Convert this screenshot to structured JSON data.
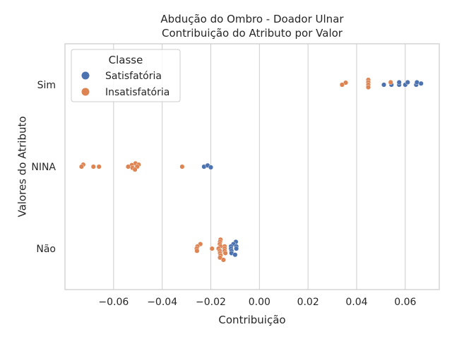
{
  "chart_data": {
    "type": "scatter",
    "title": "Abdução do Ombro - Doador Ulnar",
    "subtitle": "Contribuição do Atributo por Valor",
    "xlabel": "Contribuição",
    "ylabel": "Valores do Atributo",
    "xlim": [
      -0.08,
      0.074
    ],
    "xticks": [
      -0.06,
      -0.04,
      -0.02,
      0.0,
      0.02,
      0.04,
      0.06
    ],
    "xtick_labels": [
      "−0.06",
      "−0.04",
      "−0.02",
      "0.00",
      "0.02",
      "0.04",
      "0.06"
    ],
    "categories": [
      "Sim",
      "NINA",
      "Não"
    ],
    "grid": "vertical",
    "legend": {
      "title": "Classe",
      "placement": "upper-left"
    },
    "colors": {
      "Satisfatória": "#4c72b0",
      "Insatisfatória": "#dd8452",
      "grid": "#cccccc",
      "spine": "#cccccc"
    },
    "series": [
      {
        "name": "Satisfatória",
        "points": [
          {
            "category": "Sim",
            "x": 0.0512,
            "offset": 0.0
          },
          {
            "category": "Sim",
            "x": 0.0543,
            "offset": 0.0
          },
          {
            "category": "Sim",
            "x": 0.0575,
            "offset": 0.0
          },
          {
            "category": "Sim",
            "x": 0.0575,
            "offset": 0.12
          },
          {
            "category": "Sim",
            "x": 0.06,
            "offset": 0.0
          },
          {
            "category": "Sim",
            "x": 0.061,
            "offset": 0.12
          },
          {
            "category": "Sim",
            "x": 0.0645,
            "offset": 0.0
          },
          {
            "category": "Sim",
            "x": 0.0648,
            "offset": 0.12
          },
          {
            "category": "Sim",
            "x": 0.0665,
            "offset": 0.06
          },
          {
            "category": "NINA",
            "x": -0.0228,
            "offset": 0.0
          },
          {
            "category": "NINA",
            "x": -0.0213,
            "offset": 0.06
          },
          {
            "category": "NINA",
            "x": -0.02,
            "offset": -0.03
          },
          {
            "category": "Não",
            "x": -0.0097,
            "offset": 0.33
          },
          {
            "category": "Não",
            "x": -0.0107,
            "offset": 0.22
          },
          {
            "category": "Não",
            "x": -0.0117,
            "offset": 0.11
          },
          {
            "category": "Não",
            "x": -0.0095,
            "offset": 0.11
          },
          {
            "category": "Não",
            "x": -0.0117,
            "offset": 0.0
          },
          {
            "category": "Não",
            "x": -0.0095,
            "offset": 0.0
          },
          {
            "category": "Não",
            "x": -0.0115,
            "offset": -0.11
          },
          {
            "category": "Não",
            "x": -0.0115,
            "offset": -0.22
          },
          {
            "category": "Não",
            "x": -0.01,
            "offset": -0.3
          }
        ]
      },
      {
        "name": "Insatisfatória",
        "points": [
          {
            "category": "Sim",
            "x": 0.0448,
            "offset": 0.24
          },
          {
            "category": "Sim",
            "x": 0.0448,
            "offset": 0.12
          },
          {
            "category": "Sim",
            "x": 0.0355,
            "offset": 0.1
          },
          {
            "category": "Sim",
            "x": 0.034,
            "offset": 0.0
          },
          {
            "category": "Sim",
            "x": 0.0448,
            "offset": 0.0
          },
          {
            "category": "Sim",
            "x": 0.0448,
            "offset": -0.12
          },
          {
            "category": "Sim",
            "x": 0.054,
            "offset": 0.12
          },
          {
            "category": "NINA",
            "x": -0.0725,
            "offset": 0.1
          },
          {
            "category": "NINA",
            "x": -0.0732,
            "offset": 0.0
          },
          {
            "category": "NINA",
            "x": -0.0683,
            "offset": 0.0
          },
          {
            "category": "NINA",
            "x": -0.066,
            "offset": 0.0
          },
          {
            "category": "NINA",
            "x": -0.051,
            "offset": 0.16
          },
          {
            "category": "NINA",
            "x": -0.0525,
            "offset": 0.08
          },
          {
            "category": "NINA",
            "x": -0.0497,
            "offset": 0.1
          },
          {
            "category": "NINA",
            "x": -0.054,
            "offset": 0.0
          },
          {
            "category": "NINA",
            "x": -0.0503,
            "offset": 0.0
          },
          {
            "category": "NINA",
            "x": -0.0522,
            "offset": -0.06
          },
          {
            "category": "NINA",
            "x": -0.0512,
            "offset": -0.14
          },
          {
            "category": "NINA",
            "x": -0.0318,
            "offset": 0.0
          },
          {
            "category": "Não",
            "x": -0.016,
            "offset": 0.44
          },
          {
            "category": "Não",
            "x": -0.0162,
            "offset": 0.33
          },
          {
            "category": "Não",
            "x": -0.0163,
            "offset": 0.22
          },
          {
            "category": "Não",
            "x": -0.0243,
            "offset": 0.22
          },
          {
            "category": "Não",
            "x": -0.0255,
            "offset": 0.11
          },
          {
            "category": "Não",
            "x": -0.016,
            "offset": 0.11
          },
          {
            "category": "Não",
            "x": -0.0143,
            "offset": 0.11
          },
          {
            "category": "Não",
            "x": -0.0258,
            "offset": 0.0
          },
          {
            "category": "Não",
            "x": -0.0195,
            "offset": 0.0
          },
          {
            "category": "Não",
            "x": -0.0168,
            "offset": 0.0
          },
          {
            "category": "Não",
            "x": -0.0143,
            "offset": 0.0
          },
          {
            "category": "Não",
            "x": -0.0257,
            "offset": -0.11
          },
          {
            "category": "Não",
            "x": -0.0163,
            "offset": -0.11
          },
          {
            "category": "Não",
            "x": -0.0143,
            "offset": -0.11
          },
          {
            "category": "Não",
            "x": -0.0162,
            "offset": -0.22
          },
          {
            "category": "Não",
            "x": -0.014,
            "offset": -0.22
          },
          {
            "category": "Não",
            "x": -0.016,
            "offset": -0.33
          },
          {
            "category": "Não",
            "x": -0.0162,
            "offset": -0.44
          },
          {
            "category": "Não",
            "x": -0.0148,
            "offset": -0.55
          }
        ]
      }
    ]
  }
}
